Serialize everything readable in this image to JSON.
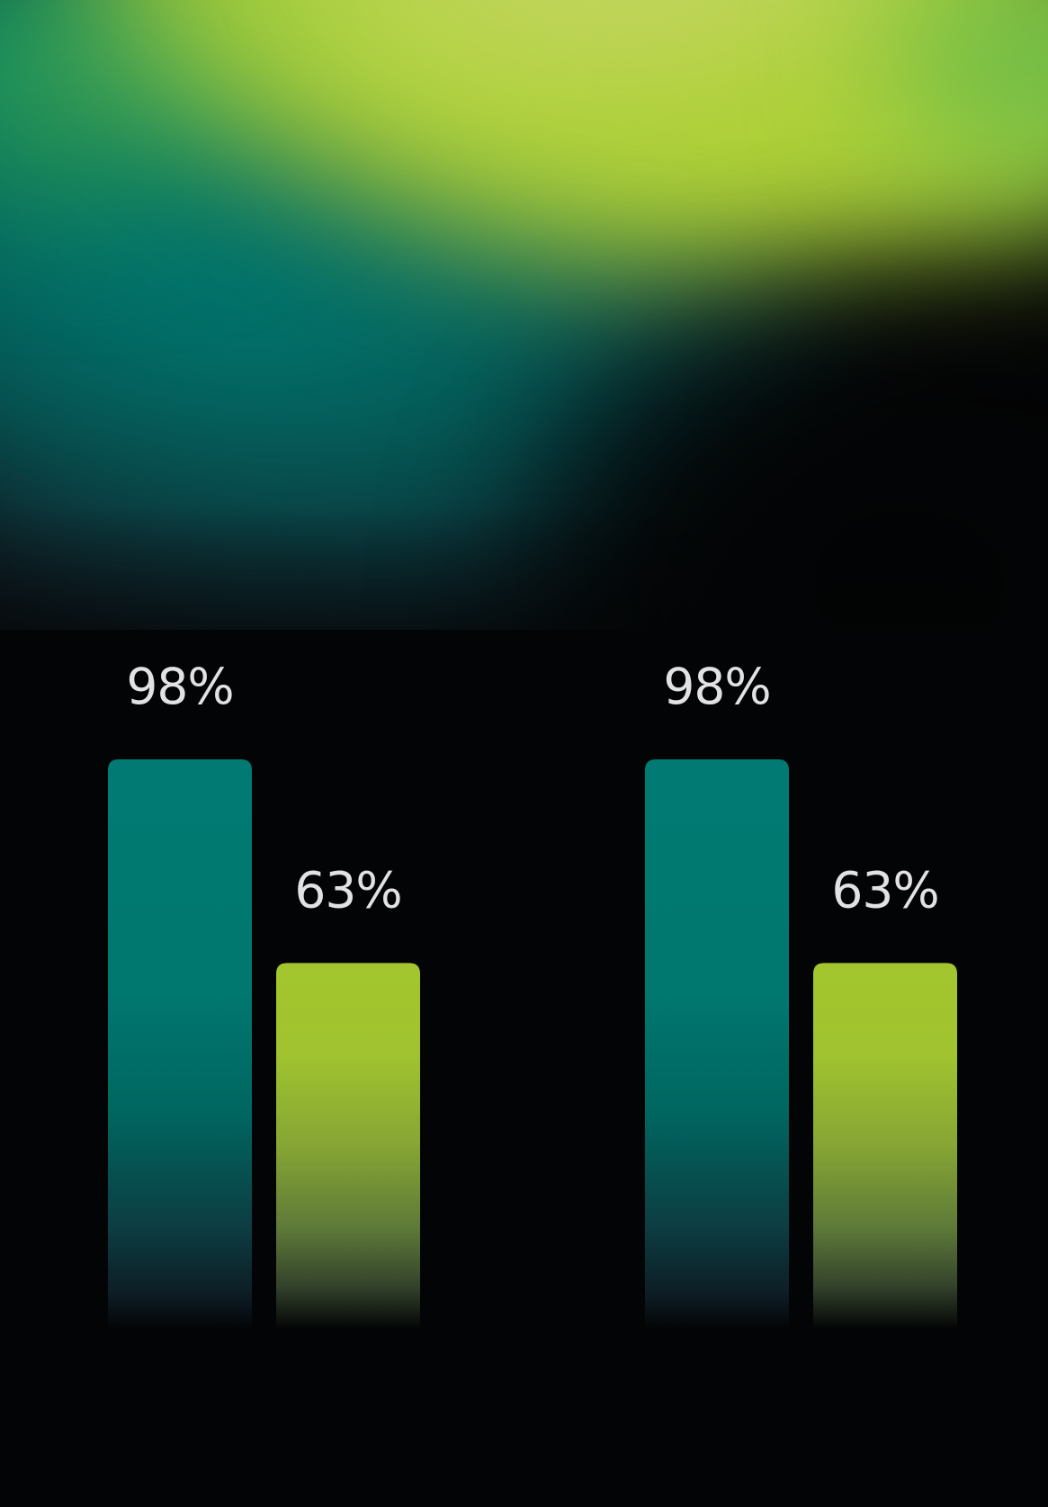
{
  "chart_data": {
    "type": "bar",
    "title": "",
    "xlabel": "",
    "ylabel": "",
    "ylim": [
      0,
      100
    ],
    "grid": false,
    "legend": "none",
    "groups": [
      {
        "bars": [
          {
            "value": 98,
            "label": "98%",
            "color": "#007a72"
          },
          {
            "value": 63,
            "label": "63%",
            "color": "#a3c62e"
          }
        ]
      },
      {
        "bars": [
          {
            "value": 98,
            "label": "98%",
            "color": "#007a72"
          },
          {
            "value": 63,
            "label": "63%",
            "color": "#a3c62e"
          }
        ]
      }
    ]
  },
  "colors": {
    "background": "#030405",
    "teal": "#007a72",
    "lime": "#a3c62e",
    "label": "#e2e2e4"
  }
}
